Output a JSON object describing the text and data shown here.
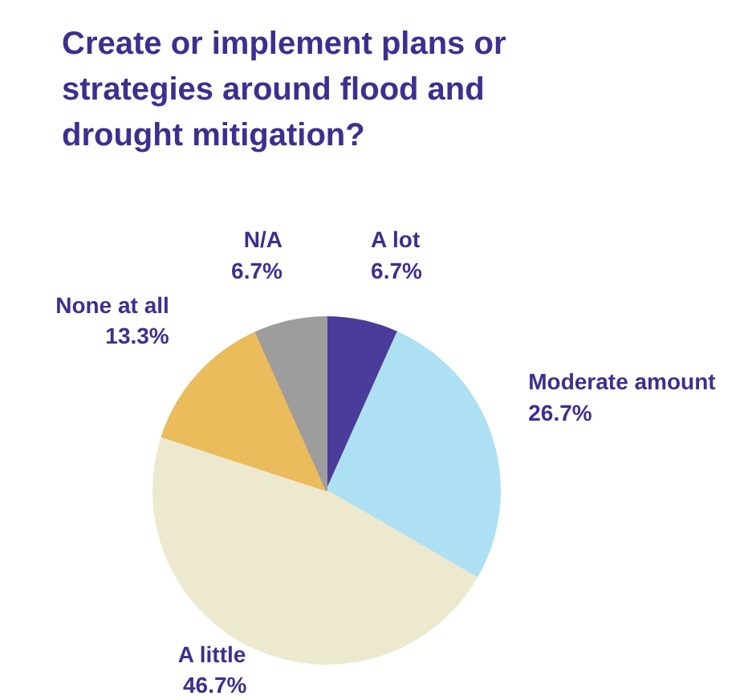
{
  "chart_data": {
    "type": "pie",
    "title": "Create or implement plans or strategies around flood and drought mitigation?",
    "categories": [
      "A lot",
      "Moderate amount",
      "A little",
      "None at all",
      "N/A"
    ],
    "values": [
      6.7,
      26.7,
      46.7,
      13.3,
      6.7
    ],
    "value_labels": [
      "6.7%",
      "26.7%",
      "46.7%",
      "13.3%",
      "6.7%"
    ],
    "colors": [
      "#4b3b9a",
      "#aee0f4",
      "#ede9cf",
      "#ebbc5c",
      "#9d9d9d"
    ]
  }
}
